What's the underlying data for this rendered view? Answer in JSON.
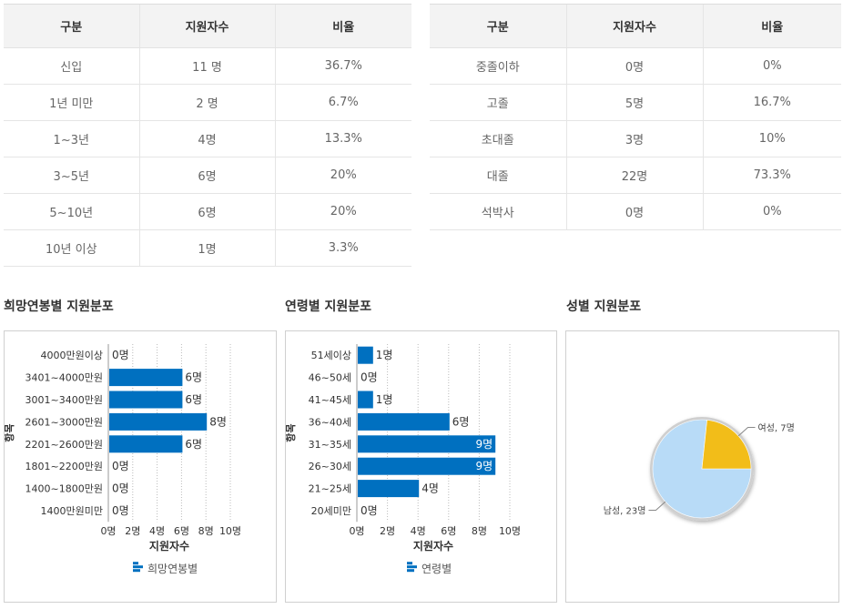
{
  "career_table": {
    "headers": [
      "구분",
      "지원자수",
      "비율"
    ],
    "rows": [
      [
        "신입",
        "11 명",
        "36.7%"
      ],
      [
        "1년 미만",
        "2 명",
        "6.7%"
      ],
      [
        "1~3년",
        "4명",
        "13.3%"
      ],
      [
        "3~5년",
        "6명",
        "20%"
      ],
      [
        "5~10년",
        "6명",
        "20%"
      ],
      [
        "10년 이상",
        "1명",
        "3.3%"
      ]
    ]
  },
  "education_table": {
    "headers": [
      "구분",
      "지원자수",
      "비율"
    ],
    "rows": [
      [
        "중졸이하",
        "0명",
        "0%"
      ],
      [
        "고졸",
        "5명",
        "16.7%"
      ],
      [
        "초대졸",
        "3명",
        "10%"
      ],
      [
        "대졸",
        "22명",
        "73.3%"
      ],
      [
        "석박사",
        "0명",
        "0%"
      ]
    ]
  },
  "colors": {
    "bar": "#0070c0",
    "pie_male": "#b8dbf7",
    "pie_female": "#f2bd19"
  },
  "chart_data": [
    {
      "type": "bar",
      "orientation": "horizontal",
      "title": "희망연봉별 지원분포",
      "categories": [
        "4000만원이상",
        "3401~4000만원",
        "3001~3400만원",
        "2601~3000만원",
        "2201~2600만원",
        "1801~2200만원",
        "1400~1800만원",
        "1400만원미만"
      ],
      "values": [
        0,
        6,
        6,
        8,
        6,
        0,
        0,
        0
      ],
      "value_labels": [
        "0명",
        "6명",
        "6명",
        "8명",
        "6명",
        "0명",
        "0명",
        "0명"
      ],
      "xlabel": "지원자수",
      "ylabel": "항목",
      "xlim": [
        0,
        10
      ],
      "xticks": [
        "0명",
        "2명",
        "4명",
        "6명",
        "8명",
        "10명"
      ],
      "legend": "희망연봉별",
      "legend_position": "bottom",
      "grid": "vertical dotted"
    },
    {
      "type": "bar",
      "orientation": "horizontal",
      "title": "연령별 지원분포",
      "categories": [
        "51세이상",
        "46~50세",
        "41~45세",
        "36~40세",
        "31~35세",
        "26~30세",
        "21~25세",
        "20세미만"
      ],
      "values": [
        1,
        0,
        1,
        6,
        9,
        9,
        4,
        0
      ],
      "value_labels": [
        "1명",
        "0명",
        "1명",
        "6명",
        "9명",
        "9명",
        "4명",
        "0명"
      ],
      "xlabel": "지원자수",
      "ylabel": "항목",
      "xlim": [
        0,
        10
      ],
      "xticks": [
        "0명",
        "2명",
        "4명",
        "6명",
        "8명",
        "10명"
      ],
      "legend": "연령별",
      "legend_position": "bottom",
      "grid": "vertical dotted"
    },
    {
      "type": "pie",
      "title": "성별 지원분포",
      "labels": [
        "남성",
        "여성"
      ],
      "values": [
        23,
        7
      ],
      "value_labels": [
        "남성, 23명",
        "여성, 7명"
      ]
    }
  ]
}
